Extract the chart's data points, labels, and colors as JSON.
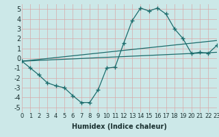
{
  "xlabel": "Humidex (Indice chaleur)",
  "xlim": [
    0,
    23
  ],
  "ylim": [
    -5.5,
    5.5
  ],
  "bg_color": "#cce8e8",
  "line_color": "#1a6b6b",
  "grid_color": "#d8a8a8",
  "line1_x": [
    0,
    1,
    2,
    3,
    4,
    5,
    6,
    7,
    8,
    9,
    10,
    11,
    12,
    13,
    14,
    15,
    16,
    17,
    18,
    19,
    20,
    21,
    22,
    23
  ],
  "line1_y": [
    -0.3,
    -1.0,
    -1.7,
    -2.5,
    -2.8,
    -3.0,
    -3.8,
    -4.5,
    -4.5,
    -3.2,
    -1.0,
    -0.9,
    1.5,
    3.8,
    5.1,
    4.8,
    5.1,
    4.5,
    3.0,
    2.0,
    0.5,
    0.6,
    0.5,
    1.3
  ],
  "line2_x": [
    0,
    23
  ],
  "line2_y": [
    -0.3,
    1.8
  ],
  "line3_x": [
    0,
    23
  ],
  "line3_y": [
    -0.3,
    0.6
  ],
  "xtick_labels": [
    "0",
    "1",
    "2",
    "3",
    "4",
    "5",
    "6",
    "7",
    "8",
    "9",
    "10",
    "11",
    "12",
    "13",
    "14",
    "15",
    "16",
    "17",
    "18",
    "19",
    "20",
    "21",
    "22",
    "23"
  ],
  "ytick_vals": [
    -5,
    -4,
    -3,
    -2,
    -1,
    0,
    1,
    2,
    3,
    4,
    5
  ],
  "fontsize_label": 7,
  "fontsize_tick": 6
}
